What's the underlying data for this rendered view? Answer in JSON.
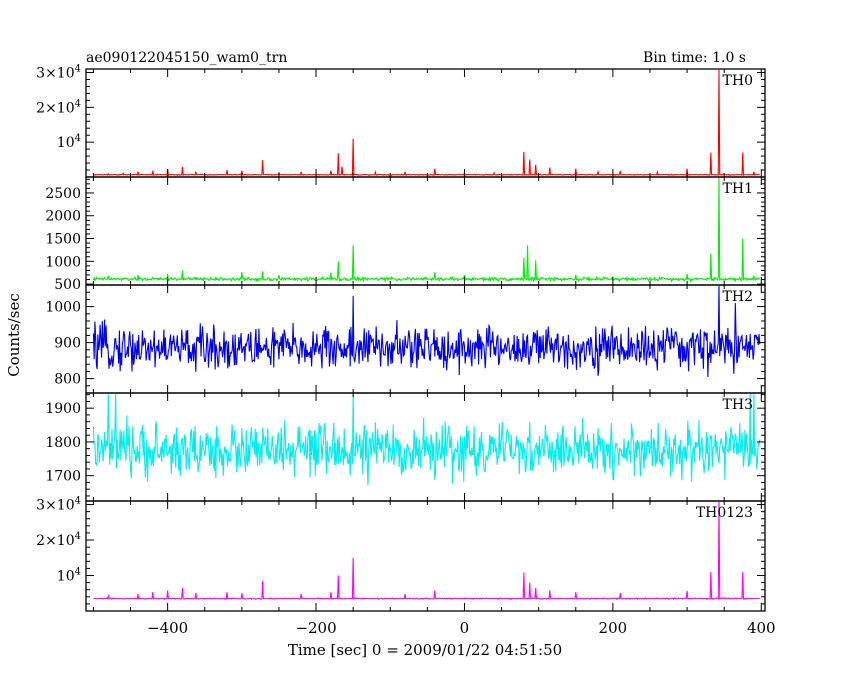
{
  "figure": {
    "title_left": "ae090122045150_wam0_trn",
    "title_right": "Bin time: 1.0 s",
    "ylabel": "Counts/sec",
    "xlabel": "Time [sec] 0 = 2009/01/22 04:51:50"
  },
  "chart_data": [
    {
      "type": "line",
      "name_label": "TH0",
      "color": "#ff0000",
      "xlim": [
        -510,
        405
      ],
      "ylim": [
        0,
        31000
      ],
      "xticks": [
        -400,
        -200,
        0,
        200,
        400
      ],
      "x_minor_step": 50,
      "yticks": [
        {
          "value": 10000,
          "label_main": "10",
          "label_exp": "4"
        },
        {
          "value": 20000,
          "label_main": "2×10",
          "label_exp": "4"
        },
        {
          "value": 30000,
          "label_main": "3×10",
          "label_exp": "4"
        }
      ],
      "y_minor_step": 2000,
      "x_range": [
        -500,
        398
      ],
      "baseline": 650,
      "noise": 150,
      "spikes": [
        [
          -480,
          900
        ],
        [
          -460,
          1100
        ],
        [
          -440,
          1500
        ],
        [
          -420,
          1800
        ],
        [
          -400,
          2300
        ],
        [
          -380,
          2900
        ],
        [
          -362,
          1500
        ],
        [
          -320,
          2000
        ],
        [
          -300,
          1800
        ],
        [
          -272,
          4800
        ],
        [
          -250,
          1200
        ],
        [
          -220,
          1500
        ],
        [
          -180,
          1800
        ],
        [
          -170,
          6800
        ],
        [
          -165,
          3000
        ],
        [
          -150,
          11000
        ],
        [
          -120,
          1400
        ],
        [
          -80,
          1500
        ],
        [
          -40,
          2400
        ],
        [
          0,
          1200
        ],
        [
          40,
          1200
        ],
        [
          80,
          7200
        ],
        [
          88,
          5000
        ],
        [
          96,
          3500
        ],
        [
          115,
          2700
        ],
        [
          150,
          2400
        ],
        [
          180,
          1500
        ],
        [
          210,
          1800
        ],
        [
          260,
          1400
        ],
        [
          300,
          2400
        ],
        [
          332,
          7000
        ],
        [
          343,
          31000
        ],
        [
          375,
          7000
        ],
        [
          390,
          1500
        ]
      ]
    },
    {
      "type": "line",
      "name_label": "TH1",
      "color": "#00ee00",
      "xlim": [
        -510,
        405
      ],
      "ylim": [
        480,
        2850
      ],
      "xticks": [
        -400,
        -200,
        0,
        200,
        400
      ],
      "x_minor_step": 50,
      "yticks": [
        {
          "value": 500,
          "label_main": "500"
        },
        {
          "value": 1000,
          "label_main": "1000"
        },
        {
          "value": 1500,
          "label_main": "1500"
        },
        {
          "value": 2000,
          "label_main": "2000"
        },
        {
          "value": 2500,
          "label_main": "2500"
        }
      ],
      "y_minor_step": 100,
      "x_range": [
        -500,
        398
      ],
      "baseline": 610,
      "noise": 45,
      "spikes": [
        [
          -480,
          680
        ],
        [
          -440,
          700
        ],
        [
          -400,
          720
        ],
        [
          -380,
          800
        ],
        [
          -300,
          760
        ],
        [
          -272,
          780
        ],
        [
          -250,
          700
        ],
        [
          -180,
          750
        ],
        [
          -170,
          1000
        ],
        [
          -150,
          1350
        ],
        [
          -40,
          760
        ],
        [
          0,
          700
        ],
        [
          80,
          1080
        ],
        [
          85,
          1350
        ],
        [
          96,
          1020
        ],
        [
          150,
          700
        ],
        [
          300,
          720
        ],
        [
          332,
          1170
        ],
        [
          343,
          2850
        ],
        [
          375,
          1500
        ],
        [
          390,
          680
        ]
      ]
    },
    {
      "type": "line",
      "name_label": "TH2",
      "color": "#0000ee",
      "xlim": [
        -510,
        405
      ],
      "ylim": [
        760,
        1060
      ],
      "xticks": [
        -400,
        -200,
        0,
        200,
        400
      ],
      "x_minor_step": 50,
      "yticks": [
        {
          "value": 800,
          "label_main": "800"
        },
        {
          "value": 900,
          "label_main": "900"
        },
        {
          "value": 1000,
          "label_main": "1000"
        }
      ],
      "y_minor_step": 20,
      "x_range": [
        -500,
        398
      ],
      "baseline": 885,
      "noise": 75,
      "spikes": [
        [
          -150,
          1030
        ],
        [
          343,
          1060
        ],
        [
          365,
          1010
        ]
      ]
    },
    {
      "type": "line",
      "name_label": "TH3",
      "color": "#00eeee",
      "xlim": [
        -510,
        405
      ],
      "ylim": [
        1625,
        1945
      ],
      "xticks": [
        -400,
        -200,
        0,
        200,
        400
      ],
      "x_minor_step": 50,
      "yticks": [
        {
          "value": 1700,
          "label_main": "1700"
        },
        {
          "value": 1800,
          "label_main": "1800"
        },
        {
          "value": 1900,
          "label_main": "1900"
        }
      ],
      "y_minor_step": 20,
      "x_range": [
        -500,
        398
      ],
      "baseline": 1775,
      "noise": 95,
      "spikes": [
        [
          -480,
          1945
        ],
        [
          -470,
          1945
        ],
        [
          -150,
          1940
        ],
        [
          385,
          1945
        ],
        [
          390,
          1945
        ]
      ]
    },
    {
      "type": "line",
      "name_label": "TH0123",
      "color": "#ff00ff",
      "xlim": [
        -510,
        405
      ],
      "ylim": [
        0,
        31000
      ],
      "xticks": [
        -400,
        -200,
        0,
        200,
        400
      ],
      "x_minor_step": 50,
      "yticks": [
        {
          "value": 10000,
          "label_main": "10",
          "label_exp": "4"
        },
        {
          "value": 20000,
          "label_main": "2×10",
          "label_exp": "4"
        },
        {
          "value": 30000,
          "label_main": "3×10",
          "label_exp": "4"
        }
      ],
      "y_minor_step": 2000,
      "x_range": [
        -500,
        398
      ],
      "baseline": 3500,
      "noise": 200,
      "spikes": [
        [
          -480,
          4200
        ],
        [
          -440,
          4800
        ],
        [
          -420,
          5300
        ],
        [
          -400,
          5800
        ],
        [
          -380,
          6500
        ],
        [
          -362,
          5000
        ],
        [
          -320,
          5300
        ],
        [
          -300,
          5000
        ],
        [
          -272,
          8500
        ],
        [
          -220,
          4800
        ],
        [
          -180,
          5300
        ],
        [
          -170,
          10000
        ],
        [
          -150,
          15000
        ],
        [
          -80,
          4800
        ],
        [
          -40,
          5800
        ],
        [
          80,
          10800
        ],
        [
          88,
          8000
        ],
        [
          96,
          6500
        ],
        [
          115,
          5800
        ],
        [
          150,
          5300
        ],
        [
          210,
          5000
        ],
        [
          300,
          5700
        ],
        [
          332,
          11000
        ],
        [
          343,
          31000
        ],
        [
          375,
          11000
        ]
      ]
    }
  ]
}
